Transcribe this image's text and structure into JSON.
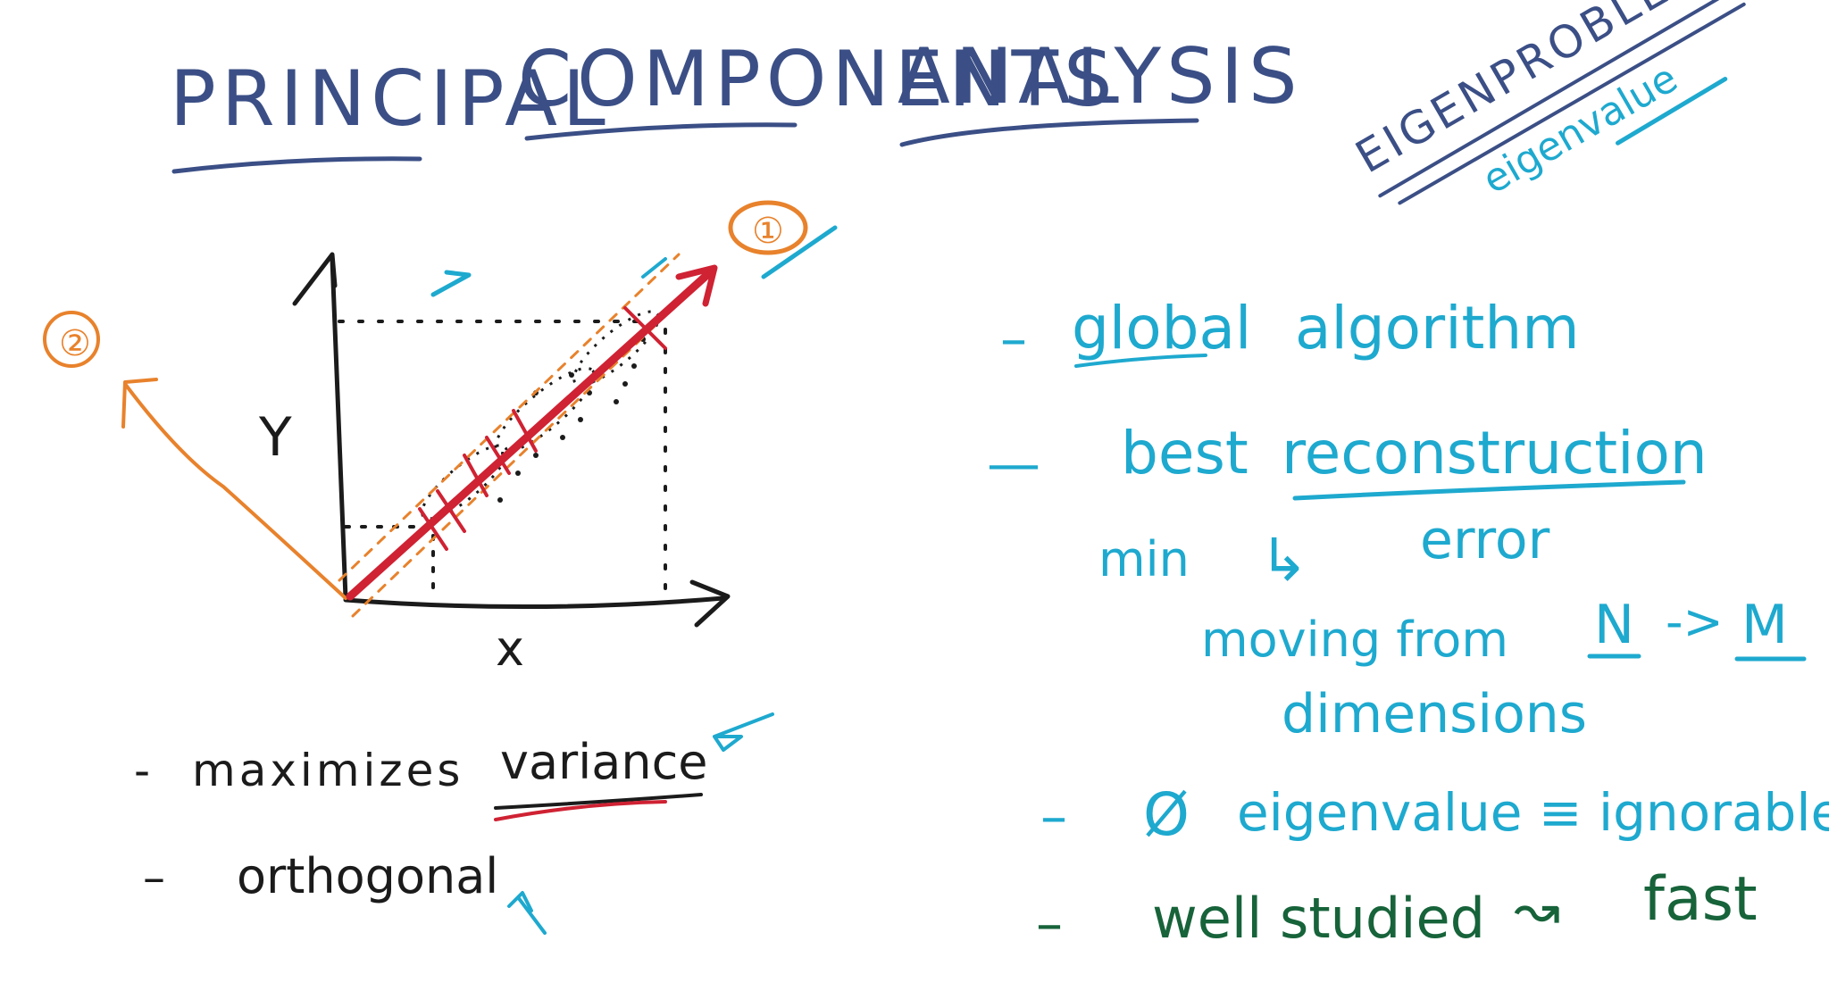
{
  "title": {
    "word1": "PRINCIPAL",
    "word2": "COMPONENTS",
    "word3": "ANALYSIS"
  },
  "corner_note": {
    "line1": "EIGENPROBLEM",
    "line2": "eigenvalue"
  },
  "diagram": {
    "x_label": "x",
    "y_label": "Y",
    "pc1_label": "①",
    "pc2_label": "②"
  },
  "left_notes": [
    {
      "dash": "-",
      "text": "maximizes",
      "emph": "variance"
    },
    {
      "dash": "–",
      "text": "orthogonal"
    }
  ],
  "right_notes": {
    "item1": {
      "dash": "–",
      "word1": "global",
      "word2": "algorithm"
    },
    "item2": {
      "dash": "—",
      "word1": "best",
      "word2": "reconstruction"
    },
    "item2_sub1": {
      "min": "min",
      "arrow": "↳",
      "error": "error"
    },
    "item2_sub2": {
      "text": "moving from",
      "n": "N",
      "arrow": "->",
      "m": "M"
    },
    "item2_sub3": "dimensions",
    "item3": {
      "dash": "–",
      "zero": "Ø",
      "text": "eigenvalue ≡ ignorable"
    },
    "item4": {
      "dash": "–",
      "text": "well studied",
      "arrow": "↝",
      "fast": "fast"
    }
  },
  "colors": {
    "title": "#3b4f86",
    "blue": "#1ea9cf",
    "dark": "#1b1b1b",
    "orange": "#e8822c",
    "red": "#cf2233",
    "green": "#17633a"
  }
}
